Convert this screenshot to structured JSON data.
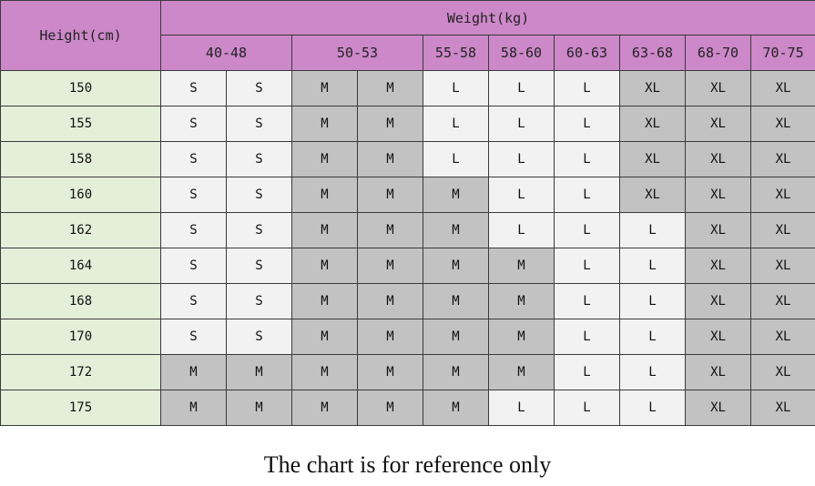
{
  "chart_data": {
    "type": "table",
    "row_header_label": "Height(cm)",
    "column_group_label": "Weight(kg)",
    "weight_ranges": [
      {
        "label": "40-48",
        "span": 2
      },
      {
        "label": "50-53",
        "span": 2
      },
      {
        "label": "55-58",
        "span": 1
      },
      {
        "label": "58-60",
        "span": 1
      },
      {
        "label": "60-63",
        "span": 1
      },
      {
        "label": "63-68",
        "span": 1
      },
      {
        "label": "68-70",
        "span": 1
      },
      {
        "label": "70-75",
        "span": 1
      }
    ],
    "rows": [
      {
        "height": "150",
        "sizes": [
          "S",
          "S",
          "M",
          "M",
          "L",
          "L",
          "L",
          "XL",
          "XL",
          "XL"
        ]
      },
      {
        "height": "155",
        "sizes": [
          "S",
          "S",
          "M",
          "M",
          "L",
          "L",
          "L",
          "XL",
          "XL",
          "XL"
        ]
      },
      {
        "height": "158",
        "sizes": [
          "S",
          "S",
          "M",
          "M",
          "L",
          "L",
          "L",
          "XL",
          "XL",
          "XL"
        ]
      },
      {
        "height": "160",
        "sizes": [
          "S",
          "S",
          "M",
          "M",
          "M",
          "L",
          "L",
          "XL",
          "XL",
          "XL"
        ]
      },
      {
        "height": "162",
        "sizes": [
          "S",
          "S",
          "M",
          "M",
          "M",
          "L",
          "L",
          "L",
          "XL",
          "XL"
        ]
      },
      {
        "height": "164",
        "sizes": [
          "S",
          "S",
          "M",
          "M",
          "M",
          "M",
          "L",
          "L",
          "XL",
          "XL"
        ]
      },
      {
        "height": "168",
        "sizes": [
          "S",
          "S",
          "M",
          "M",
          "M",
          "M",
          "L",
          "L",
          "XL",
          "XL"
        ]
      },
      {
        "height": "170",
        "sizes": [
          "S",
          "S",
          "M",
          "M",
          "M",
          "M",
          "L",
          "L",
          "XL",
          "XL"
        ]
      },
      {
        "height": "172",
        "sizes": [
          "M",
          "M",
          "M",
          "M",
          "M",
          "M",
          "L",
          "L",
          "XL",
          "XL"
        ]
      },
      {
        "height": "175",
        "sizes": [
          "M",
          "M",
          "M",
          "M",
          "M",
          "L",
          "L",
          "L",
          "XL",
          "XL"
        ]
      }
    ],
    "footer_note": "The chart is for reference only"
  },
  "colors": {
    "header_bg": "#cc88c9",
    "height_col_bg": "#e4efda",
    "light_cell": "#f2f2f2",
    "dark_cell": "#c2c2c2"
  }
}
